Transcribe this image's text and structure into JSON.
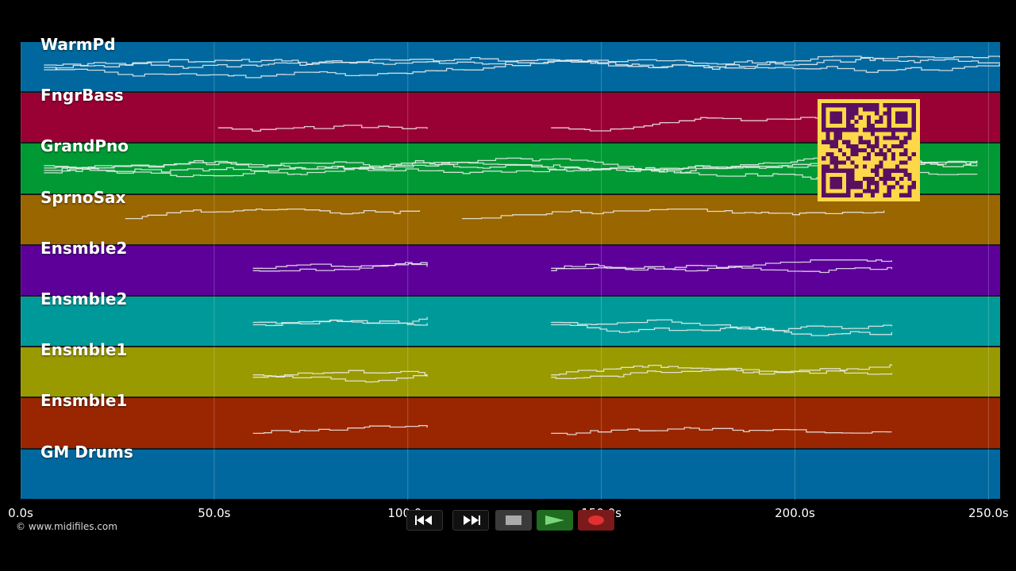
{
  "tracks": [
    {
      "name": "WarmPd",
      "color": "#00689e"
    },
    {
      "name": "FngrBass",
      "color": "#990033"
    },
    {
      "name": "GrandPno",
      "color": "#009933"
    },
    {
      "name": "SprnoSax",
      "color": "#996600"
    },
    {
      "name": "Ensmble2",
      "color": "#5c0099"
    },
    {
      "name": "Ensmble2",
      "color": "#009999"
    },
    {
      "name": "Ensmble1",
      "color": "#999900"
    },
    {
      "name": "Ensmble1",
      "color": "#992600"
    },
    {
      "name": "GM Drums",
      "color": "#00689e"
    }
  ],
  "timeline": {
    "ticks": [
      "0.0s",
      "50.0s",
      "100.0s",
      "150.0s",
      "200.0s",
      "250.0s"
    ],
    "tick_values": [
      0,
      50,
      100,
      150,
      200,
      250
    ],
    "range": [
      0,
      253
    ]
  },
  "copyright": "© www.midifiles.com",
  "transport": {
    "rewind": "rewind-icon",
    "fast_forward": "fast-forward-icon",
    "stop": "stop-icon",
    "play": "play-icon",
    "record": "record-icon"
  },
  "qr_code": "qr-code-icon"
}
